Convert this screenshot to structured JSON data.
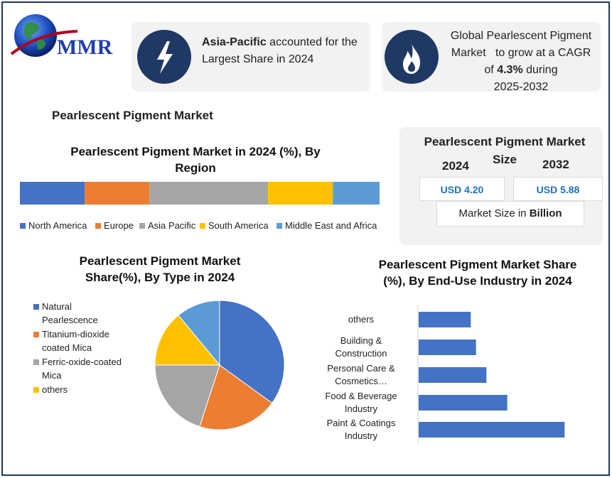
{
  "brand": {
    "logo_text": "MMR"
  },
  "highlights": {
    "region": {
      "bold": "Asia-Pacific",
      "text": " accounted for the",
      "line2": "Largest Share in 2024",
      "icon": "lightning-icon"
    },
    "cagr": {
      "line1": "Global Pearlescent Pigment",
      "line2": "Market   to grow at a CAGR",
      "line3_pre": "of ",
      "line3_bold": "4.3%",
      "line3_post": " during",
      "line4": "2025-2032",
      "icon": "fire-icon"
    }
  },
  "page_title": "Pearlescent Pigment Market",
  "market_size": {
    "title_line1": "Pearlescent Pigment Market",
    "title_line2": "Size",
    "year_a": "2024",
    "year_b": "2032",
    "value_a": "USD 4.20",
    "value_b": "USD 5.88",
    "footer_pre": "Market Size in ",
    "footer_bold": "Billion"
  },
  "colors": {
    "navy": "#1f3864",
    "blue": "#4472c4",
    "orange": "#ed7d31",
    "gray": "#a5a5a5",
    "yellow": "#ffc000",
    "lightblue": "#5b9bd5"
  },
  "chart_data": [
    {
      "type": "bar",
      "orientation": "horizontal-stacked",
      "title_line1": "Pearlescent Pigment Market in 2024 (%), By",
      "title_line2": "Region",
      "categories": [
        "North America",
        "Europe",
        "Asia Pacific",
        "South America",
        "Middle East and Africa"
      ],
      "values": [
        18,
        18,
        33,
        18,
        13
      ],
      "legend_position": "bottom"
    },
    {
      "type": "pie",
      "title_line1": "Pearlescent Pigment Market",
      "title_line2": "Share(%), By Type  in 2024",
      "legend_position": "left",
      "slices": [
        {
          "label_line1": "Natural",
          "label_line2": "Pearlescence",
          "value": 35,
          "color": "#4472c4"
        },
        {
          "label_line1": "Titanium-dioxide",
          "label_line2": "coated Mica",
          "value": 20,
          "color": "#ed7d31"
        },
        {
          "label_line1": "Ferric-oxide-coated",
          "label_line2": "Mica",
          "value": 20,
          "color": "#a5a5a5"
        },
        {
          "label_line1": "others",
          "label_line2": "",
          "value": 14,
          "color": "#ffc000"
        },
        {
          "label_line1": "",
          "label_line2": "",
          "value": 11,
          "color": "#5b9bd5"
        }
      ]
    },
    {
      "type": "bar",
      "orientation": "horizontal",
      "title_line1": "Pearlescent Pigment Market Share",
      "title_line2": "(%), By  End-Use Industry in 2024",
      "categories": [
        {
          "line1": "others",
          "line2": ""
        },
        {
          "line1": "Building &",
          "line2": "Construction"
        },
        {
          "line1": "Personal Care &",
          "line2": "Cosmetics…"
        },
        {
          "line1": "Food & Beverage",
          "line2": "Industry"
        },
        {
          "line1": "Paint & Coatings",
          "line2": "Industry"
        }
      ],
      "values": [
        10,
        11,
        13,
        17,
        28
      ],
      "xlim": [
        0,
        30
      ],
      "grid": false
    }
  ]
}
